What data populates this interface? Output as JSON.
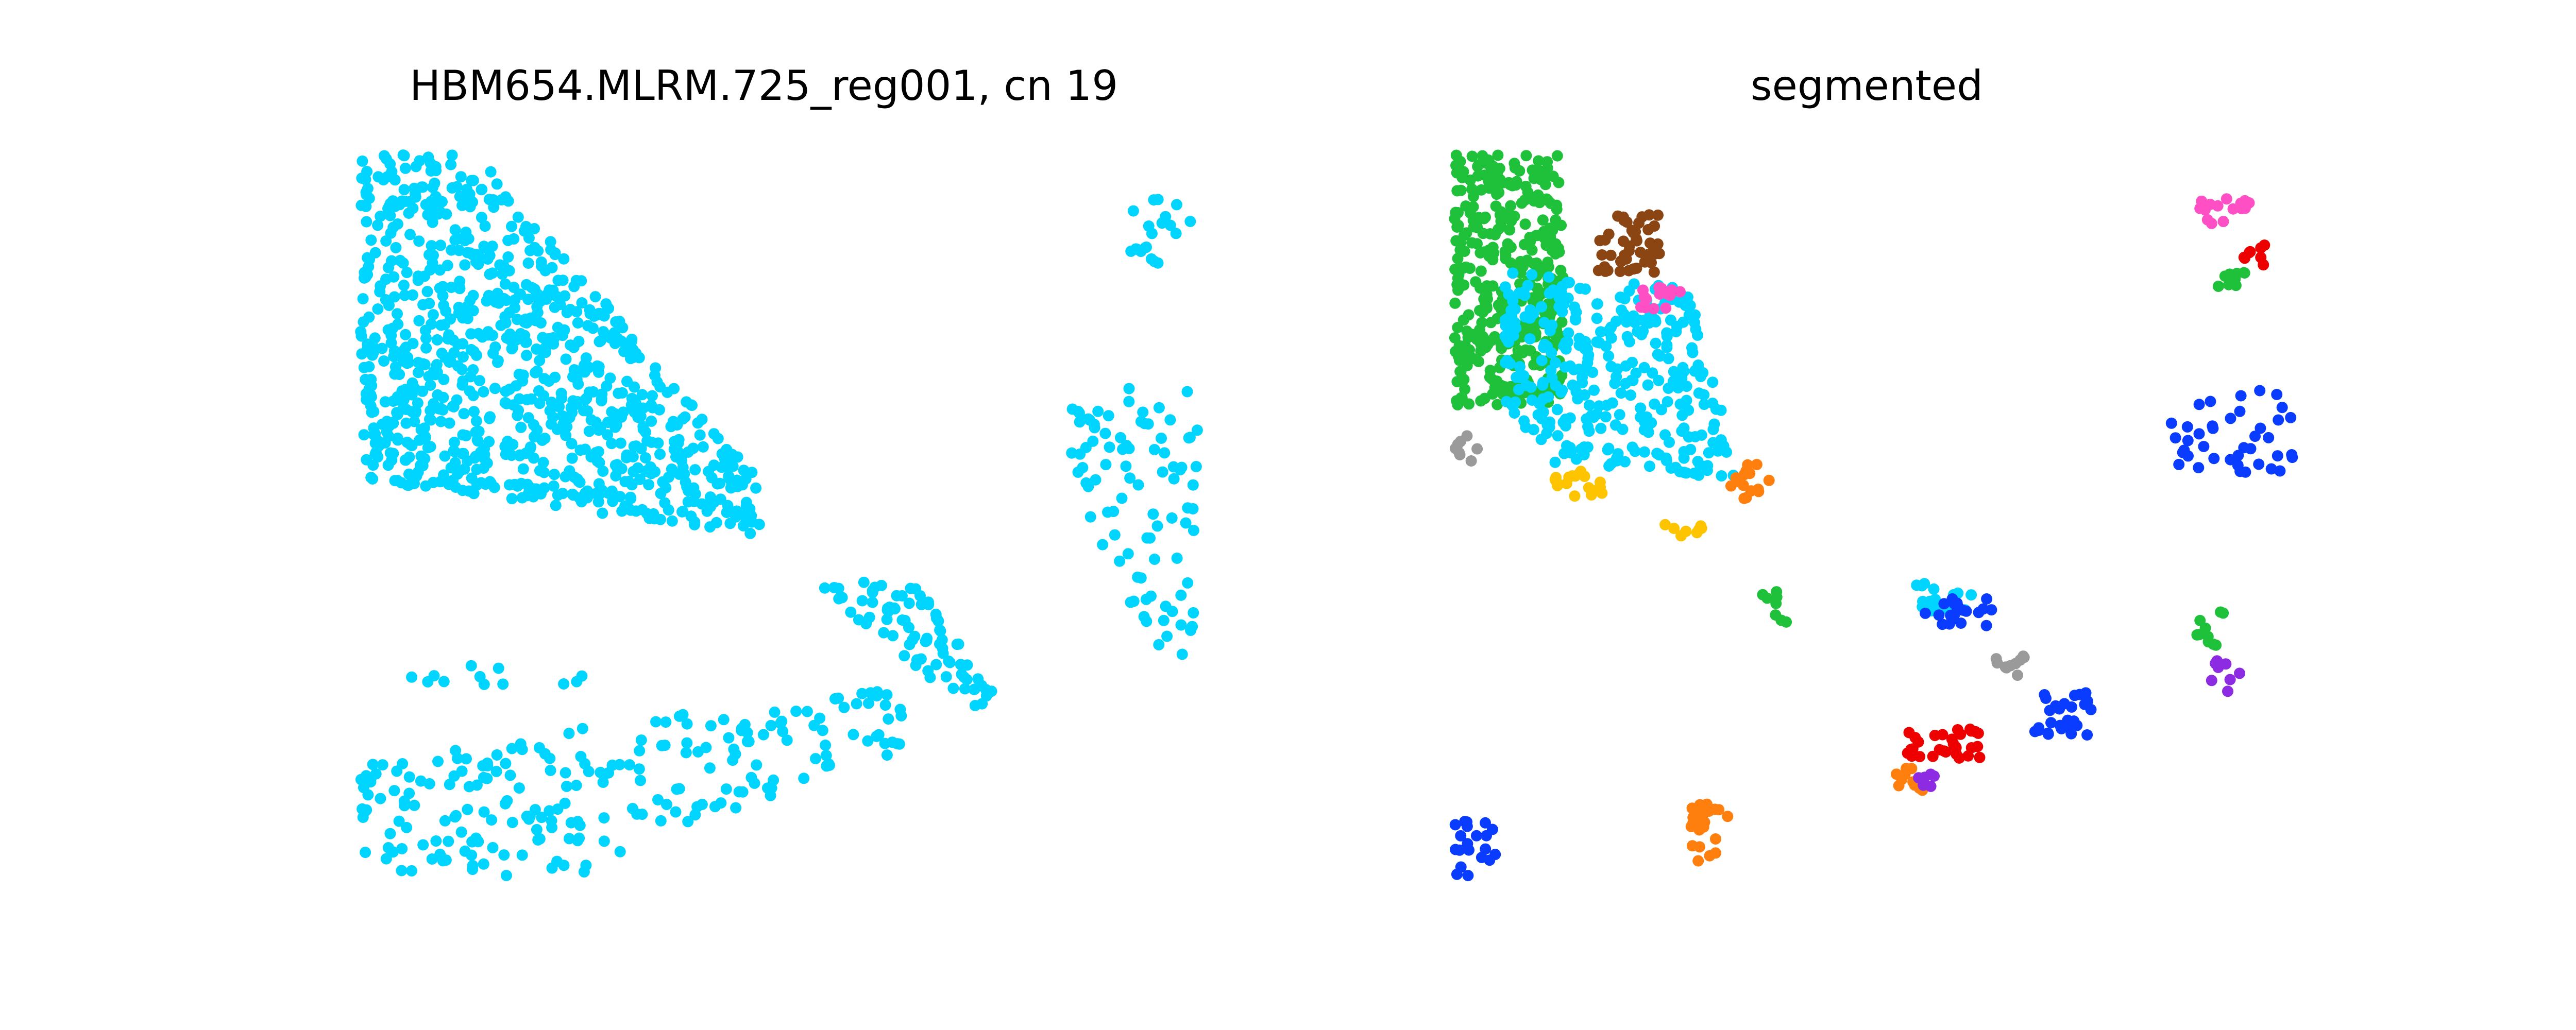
{
  "chart_data": [
    {
      "type": "scatter",
      "title": "HBM654.MLRM.725_reg001, cn 19",
      "axis": "off",
      "grid": false,
      "series": [
        {
          "color": "#00d5ff",
          "clusters": [
            {
              "region": [
                [
                  0.0,
                  0.0
                ],
                [
                  0.14,
                  0.0
                ],
                [
                  0.48,
                  0.45
                ],
                [
                  0.48,
                  0.52
                ],
                [
                  0.0,
                  0.44
                ]
              ],
              "n": 900
            },
            {
              "region": [
                [
                  0.89,
                  0.06
                ],
                [
                  0.99,
                  0.06
                ],
                [
                  0.99,
                  0.15
                ],
                [
                  0.89,
                  0.15
                ]
              ],
              "n": 20
            },
            {
              "region": [
                [
                  0.84,
                  0.33
                ],
                [
                  1.0,
                  0.3
                ],
                [
                  1.0,
                  0.68
                ],
                [
                  0.95,
                  0.68
                ],
                [
                  0.84,
                  0.45
                ]
              ],
              "n": 90
            },
            {
              "region": [
                [
                  0.54,
                  0.58
                ],
                [
                  0.66,
                  0.58
                ],
                [
                  0.76,
                  0.74
                ],
                [
                  0.72,
                  0.76
                ],
                [
                  0.6,
                  0.64
                ]
              ],
              "n": 80
            },
            {
              "region": [
                [
                  0.05,
                  0.69
                ],
                [
                  0.28,
                  0.69
                ],
                [
                  0.28,
                  0.72
                ],
                [
                  0.05,
                  0.72
                ]
              ],
              "n": 12
            },
            {
              "region": [
                [
                  0.0,
                  0.82
                ],
                [
                  0.64,
                  0.72
                ],
                [
                  0.66,
                  0.8
                ],
                [
                  0.28,
                  0.98
                ],
                [
                  0.0,
                  0.98
                ]
              ],
              "n": 230
            }
          ]
        }
      ]
    },
    {
      "type": "scatter",
      "title": "segmented",
      "axis": "off",
      "grid": false,
      "series": [
        {
          "color": "#1fc13a",
          "clusters": [
            {
              "region": [
                [
                  0.0,
                  0.0
                ],
                [
                  0.13,
                  0.0
                ],
                [
                  0.13,
                  0.34
                ],
                [
                  0.0,
                  0.34
                ]
              ],
              "n": 380
            },
            {
              "region": [
                [
                  0.91,
                  0.16
                ],
                [
                  0.95,
                  0.16
                ],
                [
                  0.95,
                  0.18
                ],
                [
                  0.91,
                  0.18
                ]
              ],
              "n": 10
            },
            {
              "region": [
                [
                  0.88,
                  0.62
                ],
                [
                  0.92,
                  0.62
                ],
                [
                  0.92,
                  0.67
                ],
                [
                  0.88,
                  0.67
                ]
              ],
              "n": 10
            },
            {
              "region": [
                [
                  0.36,
                  0.59
                ],
                [
                  0.4,
                  0.59
                ],
                [
                  0.4,
                  0.64
                ],
                [
                  0.36,
                  0.64
                ]
              ],
              "n": 8
            }
          ]
        },
        {
          "color": "#00d5ff",
          "clusters": [
            {
              "region": [
                [
                  0.06,
                  0.16
                ],
                [
                  0.28,
                  0.18
                ],
                [
                  0.34,
                  0.44
                ],
                [
                  0.12,
                  0.42
                ],
                [
                  0.06,
                  0.34
                ]
              ],
              "n": 330
            },
            {
              "region": [
                [
                  0.55,
                  0.58
                ],
                [
                  0.62,
                  0.58
                ],
                [
                  0.62,
                  0.62
                ],
                [
                  0.55,
                  0.62
                ]
              ],
              "n": 20
            }
          ]
        },
        {
          "color": "#8b4513",
          "clusters": [
            {
              "region": [
                [
                  0.17,
                  0.08
                ],
                [
                  0.25,
                  0.08
                ],
                [
                  0.25,
                  0.16
                ],
                [
                  0.17,
                  0.16
                ]
              ],
              "n": 50
            }
          ],
          "n": 50
        },
        {
          "color": "#ff4fc4",
          "clusters": [
            {
              "region": [
                [
                  0.22,
                  0.18
                ],
                [
                  0.27,
                  0.18
                ],
                [
                  0.27,
                  0.21
                ],
                [
                  0.22,
                  0.21
                ]
              ],
              "n": 15
            },
            {
              "region": [
                [
                  0.88,
                  0.06
                ],
                [
                  0.95,
                  0.06
                ],
                [
                  0.95,
                  0.1
                ],
                [
                  0.88,
                  0.1
                ]
              ],
              "n": 15
            }
          ]
        },
        {
          "color": "#0a3cff",
          "clusters": [
            {
              "region": [
                [
                  0.56,
                  0.6
                ],
                [
                  0.65,
                  0.6
                ],
                [
                  0.65,
                  0.64
                ],
                [
                  0.56,
                  0.64
                ]
              ],
              "n": 20
            },
            {
              "region": [
                [
                  0.69,
                  0.73
                ],
                [
                  0.76,
                  0.73
                ],
                [
                  0.76,
                  0.79
                ],
                [
                  0.69,
                  0.79
                ]
              ],
              "n": 30
            },
            {
              "region": [
                [
                  0.85,
                  0.35
                ],
                [
                  1.0,
                  0.3
                ],
                [
                  1.0,
                  0.45
                ],
                [
                  0.85,
                  0.45
                ]
              ],
              "n": 40
            },
            {
              "region": [
                [
                  0.0,
                  0.9
                ],
                [
                  0.05,
                  0.9
                ],
                [
                  0.05,
                  0.98
                ],
                [
                  0.0,
                  0.98
                ]
              ],
              "n": 20
            }
          ]
        },
        {
          "color": "#ff7f0e",
          "clusters": [
            {
              "region": [
                [
                  0.33,
                  0.42
                ],
                [
                  0.38,
                  0.42
                ],
                [
                  0.38,
                  0.47
                ],
                [
                  0.33,
                  0.47
                ]
              ],
              "n": 15
            },
            {
              "region": [
                [
                  0.28,
                  0.88
                ],
                [
                  0.33,
                  0.88
                ],
                [
                  0.33,
                  0.96
                ],
                [
                  0.28,
                  0.96
                ]
              ],
              "n": 25
            },
            {
              "region": [
                [
                  0.52,
                  0.83
                ],
                [
                  0.56,
                  0.83
                ],
                [
                  0.56,
                  0.87
                ],
                [
                  0.52,
                  0.87
                ]
              ],
              "n": 10
            }
          ]
        },
        {
          "color": "#ffc400",
          "clusters": [
            {
              "region": [
                [
                  0.12,
                  0.43
                ],
                [
                  0.18,
                  0.43
                ],
                [
                  0.18,
                  0.47
                ],
                [
                  0.12,
                  0.47
                ]
              ],
              "n": 20
            },
            {
              "region": [
                [
                  0.25,
                  0.5
                ],
                [
                  0.3,
                  0.5
                ],
                [
                  0.3,
                  0.52
                ],
                [
                  0.25,
                  0.52
                ]
              ],
              "n": 8
            }
          ]
        },
        {
          "color": "#ee0000",
          "clusters": [
            {
              "region": [
                [
                  0.54,
                  0.78
                ],
                [
                  0.63,
                  0.78
                ],
                [
                  0.63,
                  0.82
                ],
                [
                  0.54,
                  0.82
                ]
              ],
              "n": 30
            },
            {
              "region": [
                [
                  0.94,
                  0.12
                ],
                [
                  0.97,
                  0.12
                ],
                [
                  0.97,
                  0.16
                ],
                [
                  0.94,
                  0.16
                ]
              ],
              "n": 8
            }
          ]
        },
        {
          "color": "#9a9a9a",
          "clusters": [
            {
              "region": [
                [
                  0.0,
                  0.38
                ],
                [
                  0.03,
                  0.38
                ],
                [
                  0.03,
                  0.43
                ],
                [
                  0.0,
                  0.43
                ]
              ],
              "n": 8
            },
            {
              "region": [
                [
                  0.64,
                  0.68
                ],
                [
                  0.68,
                  0.68
                ],
                [
                  0.68,
                  0.71
                ],
                [
                  0.64,
                  0.71
                ]
              ],
              "n": 10
            }
          ]
        },
        {
          "color": "#8d2be2",
          "clusters": [
            {
              "region": [
                [
                  0.9,
                  0.68
                ],
                [
                  0.95,
                  0.68
                ],
                [
                  0.95,
                  0.73
                ],
                [
                  0.9,
                  0.73
                ]
              ],
              "n": 8
            },
            {
              "region": [
                [
                  0.55,
                  0.84
                ],
                [
                  0.58,
                  0.84
                ],
                [
                  0.58,
                  0.86
                ],
                [
                  0.55,
                  0.86
                ]
              ],
              "n": 6
            }
          ]
        }
      ]
    }
  ]
}
